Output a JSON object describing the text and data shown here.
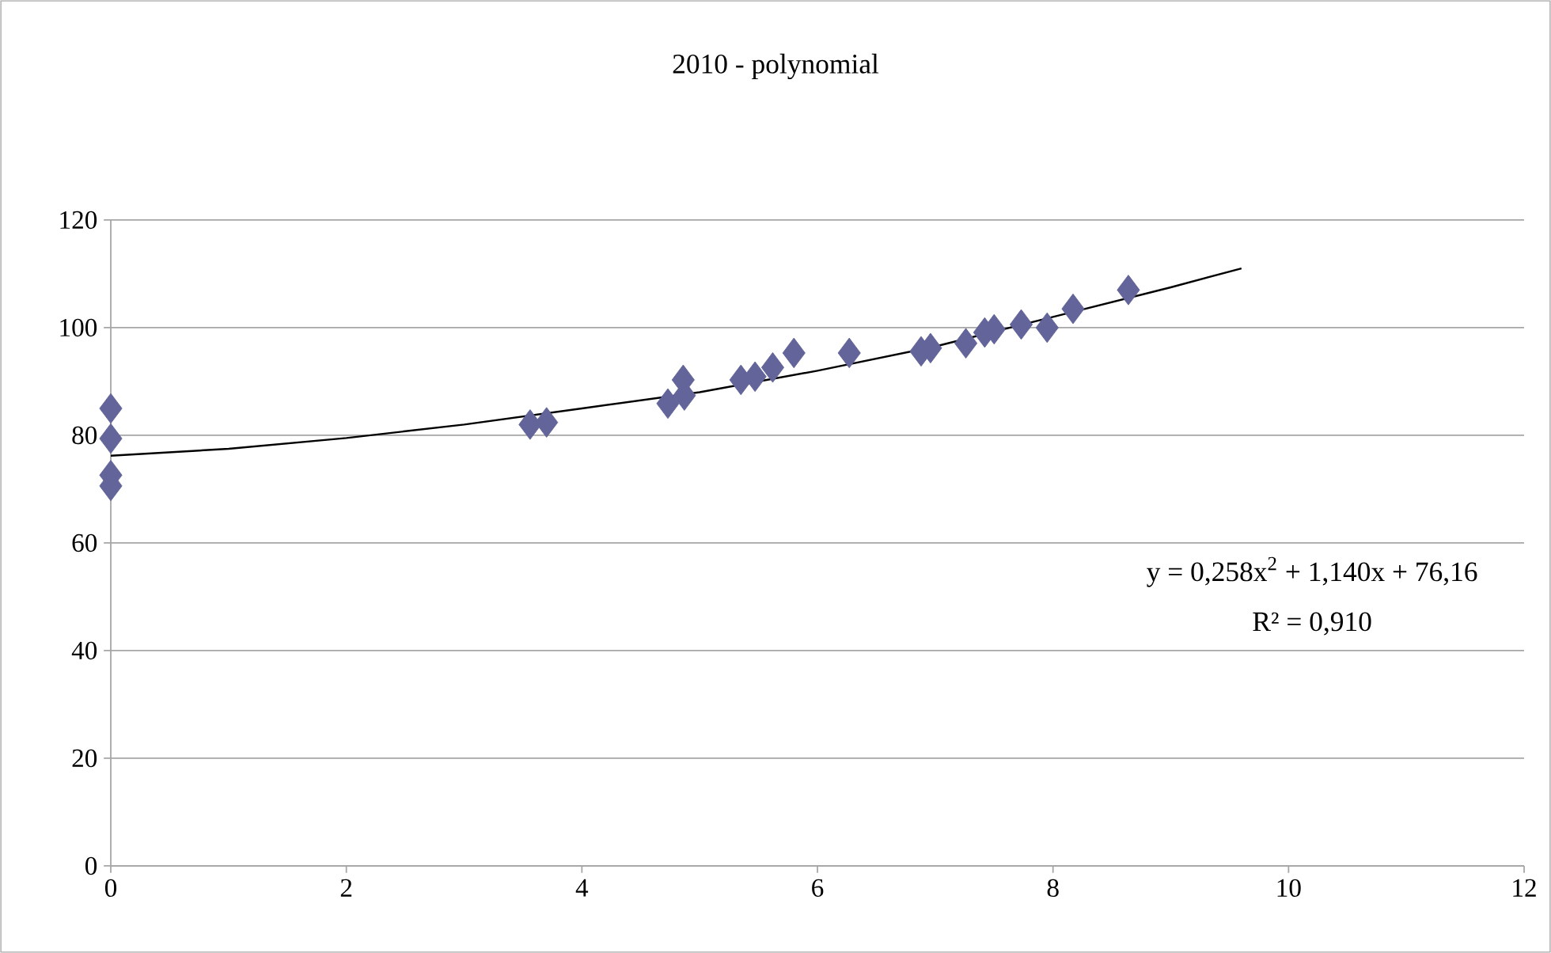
{
  "chart_data": {
    "type": "scatter",
    "title": "2010 - polynomial",
    "series": [
      {
        "color": "#62649a",
        "marker": "diamond",
        "x": [
          0,
          0,
          0,
          0,
          3.56,
          3.7,
          4.73,
          4.87,
          4.86,
          5.35,
          5.47,
          5.62,
          5.8,
          6.27,
          6.88,
          6.96,
          7.26,
          7.42,
          7.5,
          7.73,
          7.95,
          8.17,
          8.64
        ],
        "values": [
          85,
          79.4,
          72.6,
          70.6,
          82,
          82.4,
          85.9,
          87.4,
          90.3,
          90.3,
          90.9,
          92.6,
          95.3,
          95.3,
          95.6,
          96.2,
          97.1,
          99.1,
          99.7,
          100.6,
          100,
          103.5,
          107
        ]
      },
      {
        "type": "line",
        "color": "#000000",
        "marker": "none",
        "x": [
          0,
          1,
          2,
          3,
          4,
          5,
          6,
          7,
          8,
          9,
          9.6
        ],
        "values": [
          76.2,
          77.5,
          79.5,
          82,
          85,
          88,
          92,
          96.5,
          102,
          107.5,
          111
        ]
      }
    ],
    "annotations": [
      "y = 0,258x$^{2}$ + 1,140x + 76,16",
      "R² = 0,910"
    ],
    "xlim": [
      0,
      12
    ],
    "xticks": [
      0,
      2,
      4,
      6,
      8,
      10,
      12
    ],
    "ylim": [
      0,
      120
    ],
    "yticks": [
      0,
      20,
      40,
      60,
      80,
      100,
      120
    ],
    "grid": "y"
  }
}
